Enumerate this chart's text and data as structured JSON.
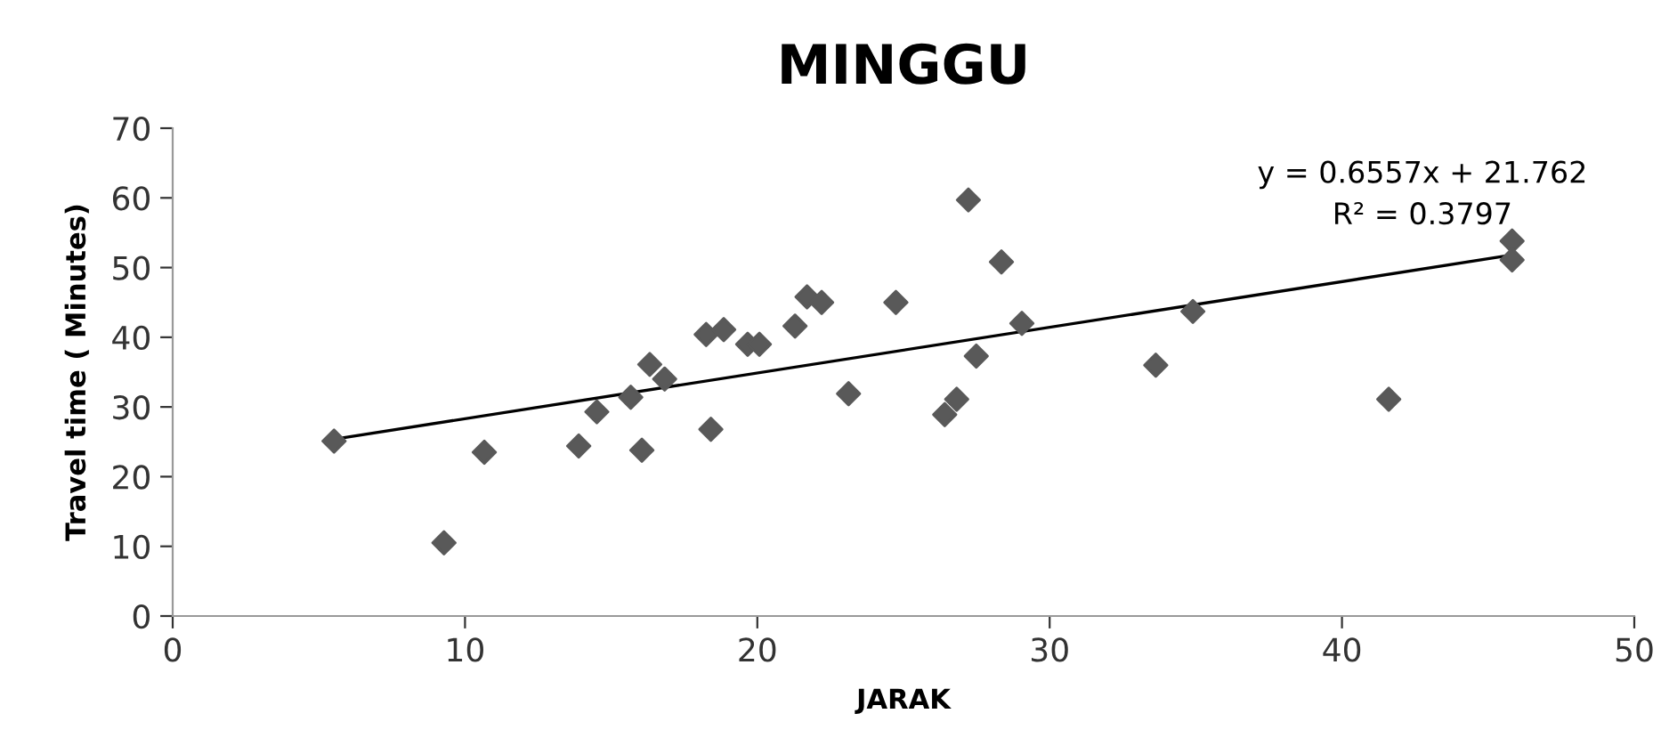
{
  "chart_data": {
    "type": "scatter",
    "title": "MINGGU",
    "xlabel": "JARAK",
    "ylabel": "Travel time ( Minutes)",
    "xlim": [
      0,
      50
    ],
    "xticks": [
      0,
      10,
      20,
      30,
      40,
      50
    ],
    "ylim": [
      0,
      70
    ],
    "yticks": [
      0,
      10,
      20,
      30,
      40,
      50,
      60,
      70
    ],
    "grid": false,
    "legend": false,
    "marker": "diamond",
    "series": [
      {
        "color": "#595959",
        "x": [
          5.52,
          9.28,
          10.66,
          13.89,
          14.51,
          15.67,
          16.05,
          16.32,
          16.83,
          18.25,
          18.41,
          18.85,
          19.67,
          20.07,
          21.29,
          21.7,
          22.2,
          23.12,
          24.74,
          26.41,
          26.82,
          27.22,
          27.49,
          28.35,
          29.05,
          33.63,
          34.9,
          41.6,
          45.82,
          45.82
        ],
        "values": [
          25.1,
          10.5,
          23.5,
          24.4,
          29.3,
          31.4,
          23.8,
          36.1,
          34.0,
          40.4,
          26.8,
          41.1,
          39.0,
          39.0,
          41.6,
          45.8,
          45.0,
          31.9,
          45.0,
          28.9,
          31.1,
          59.7,
          37.3,
          50.8,
          42.0,
          36.0,
          43.7,
          31.1,
          53.8,
          51.1
        ]
      },
      {
        "type": "line",
        "color": "#000000",
        "marker": "none",
        "line_style": "solid",
        "x": [
          5.52,
          45.82
        ],
        "values": [
          25.38,
          51.8
        ]
      }
    ],
    "annotations": [
      "y = 0.6557x + 21.762",
      "R² = 0.3797"
    ]
  }
}
